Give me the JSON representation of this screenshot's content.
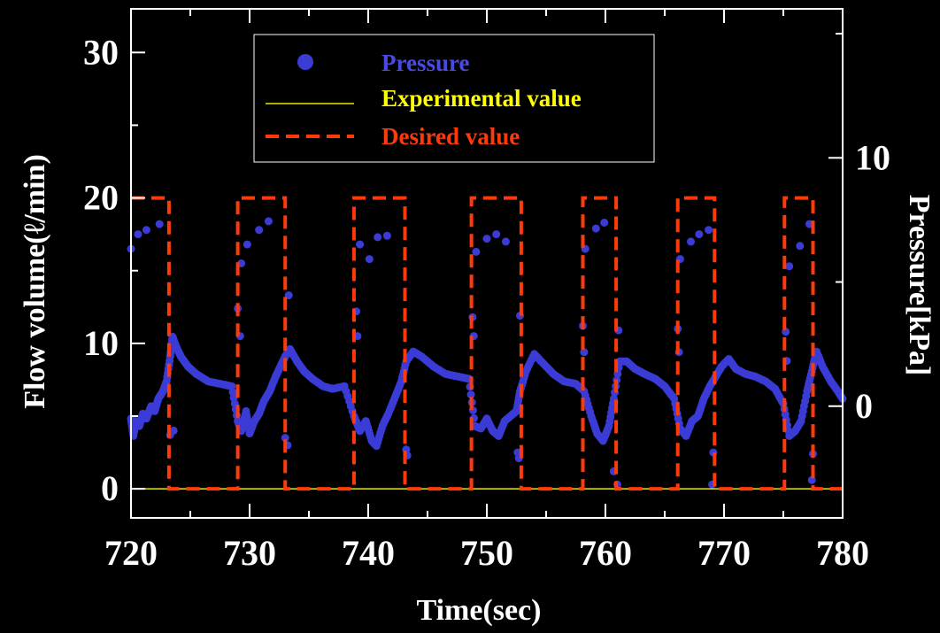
{
  "chart_data": {
    "type": "line",
    "xlabel": "Time(sec)",
    "ylabel_left": "Flow volume(ℓ/min)",
    "ylabel_right": "Pressure[kPa]",
    "xlim": [
      720,
      780
    ],
    "ylim_left": [
      -2,
      33
    ],
    "ylim_right": [
      -4.5,
      16
    ],
    "x_ticks": [
      720,
      730,
      740,
      750,
      760,
      770,
      780
    ],
    "y_ticks_left": [
      0,
      10,
      20,
      30
    ],
    "y_ticks_right": [
      0,
      10
    ],
    "background": "#000000",
    "axis_color": "#ffffff",
    "legend_position": "top-center",
    "series": [
      {
        "name": "Pressure",
        "style": "dots",
        "axis": "right",
        "color": "#3b3bd6",
        "x": [
          720,
          720.2,
          720.4,
          720.7,
          721,
          721.3,
          721.7,
          722,
          722.3,
          722.7,
          723,
          723.3,
          723.5,
          723.8,
          724.2,
          724.8,
          725.5,
          726.5,
          727.5,
          728.5,
          729,
          729.3,
          729.7,
          730,
          730.4,
          730.8,
          731.2,
          731.7,
          732.2,
          732.6,
          733,
          733.4,
          734,
          734.6,
          735.3,
          736.2,
          737,
          738,
          738.8,
          739.3,
          739.8,
          740.3,
          740.7,
          741.2,
          741.7,
          742.3,
          742.8,
          743.2,
          743.8,
          744.5,
          745.5,
          746.5,
          747.5,
          748.5,
          749,
          749.5,
          750,
          750.5,
          751,
          751.5,
          752,
          752.5,
          752.8,
          753.3,
          754,
          754.8,
          755.6,
          756.5,
          757.5,
          758.2,
          758.8,
          759.3,
          759.8,
          760.3,
          760.7,
          761.2,
          761.8,
          762.5,
          763.3,
          764.2,
          765,
          765.8,
          766.3,
          766.8,
          767.3,
          767.8,
          768.3,
          768.8,
          769.3,
          769.8,
          770.4,
          771,
          771.8,
          772.6,
          773.5,
          774.3,
          775,
          775.5,
          776,
          776.5,
          777,
          777.4,
          777.8,
          778.3,
          779,
          779.6,
          780
        ],
        "y": [
          -0.5,
          -1.2,
          -0.6,
          -0.8,
          -0.3,
          -0.5,
          0,
          -0.2,
          0.3,
          0.6,
          1,
          2,
          2.8,
          2.4,
          2,
          1.6,
          1.3,
          1,
          0.9,
          0.8,
          -0.6,
          -1,
          -0.2,
          -1.1,
          -0.6,
          -0.3,
          0.2,
          0.6,
          1.2,
          1.6,
          2,
          2.3,
          1.8,
          1.4,
          1.1,
          0.8,
          0.7,
          0.8,
          -0.4,
          -1,
          -0.6,
          -1.4,
          -1.6,
          -0.8,
          -0.3,
          0.4,
          1,
          1.8,
          2.2,
          2,
          1.6,
          1.3,
          1.2,
          1.1,
          -0.8,
          -0.9,
          -0.5,
          -1,
          -1.2,
          -0.6,
          -0.4,
          -0.2,
          0.6,
          1.4,
          2.1,
          1.7,
          1.3,
          1,
          0.9,
          0.6,
          -0.4,
          -1.1,
          -1.4,
          -0.8,
          0.3,
          1.8,
          1.8,
          1.5,
          1.3,
          1.1,
          0.8,
          0.3,
          -0.9,
          -1.2,
          -0.6,
          -0.4,
          0.3,
          0.8,
          1.2,
          1.6,
          1.9,
          1.5,
          1.3,
          1.2,
          1,
          0.7,
          0.1,
          -1.2,
          -1,
          -0.6,
          0.6,
          1.4,
          2.2,
          1.6,
          1,
          0.6,
          0.3
        ]
      },
      {
        "name": "Pressure",
        "style": "dots",
        "axis": "left",
        "color": "#3b3bd6",
        "x": [
          720,
          720.6,
          721.3,
          722.4,
          723.6,
          723.3,
          729,
          729.2,
          729.3,
          729.8,
          730.8,
          731.6,
          733,
          733.2,
          733.3,
          739,
          739.1,
          739.3,
          740.1,
          740.8,
          741.6,
          743.2,
          743.3,
          748.8,
          748.9,
          749.1,
          750,
          750.8,
          751.6,
          752.6,
          752.7,
          752.8,
          758.1,
          758.2,
          758.3,
          759.2,
          759.9,
          760.7,
          761,
          761.1,
          766.1,
          766.2,
          766.3,
          767.2,
          767.9,
          768.7,
          769,
          769.1,
          775.2,
          775.3,
          775.5,
          776.4,
          777.2,
          777.4,
          777.5
        ],
        "y": [
          16.5,
          17.5,
          17.8,
          18.2,
          4,
          3.7,
          12.4,
          10.5,
          15.5,
          16.8,
          17.8,
          18.4,
          3.5,
          3,
          13.3,
          12.2,
          10.5,
          16.8,
          15.8,
          17.3,
          17.4,
          2.7,
          2.3,
          11.8,
          10.5,
          16.3,
          17.2,
          17.5,
          17,
          2.5,
          2.1,
          11.9,
          11.2,
          9.4,
          16.5,
          17.9,
          18.3,
          1.2,
          0.3,
          10.9,
          11,
          9.4,
          15.8,
          17,
          17.5,
          17.8,
          0.3,
          2.5,
          10.8,
          8.8,
          15.3,
          16.7,
          18.2,
          0.6,
          2.4
        ]
      },
      {
        "name": "Experimental value",
        "style": "line",
        "axis": "left",
        "color": "#e8e800",
        "x": [
          720,
          780
        ],
        "y": [
          0,
          0
        ]
      },
      {
        "name": "Desired value",
        "style": "dashed",
        "axis": "left",
        "color": "#ff3a0a",
        "x": [
          720,
          720.2,
          723.2,
          723.2,
          729,
          729,
          733,
          733,
          738.8,
          738.8,
          743.1,
          743.1,
          748.7,
          748.7,
          752.9,
          752.9,
          758.1,
          758.1,
          760.9,
          760.9,
          766.1,
          766.1,
          769.2,
          769.2,
          775.1,
          775.1,
          777.5,
          777.5,
          780
        ],
        "y": [
          20,
          20,
          20,
          0,
          0,
          20,
          20,
          0,
          0,
          20,
          20,
          0,
          0,
          20,
          20,
          0,
          0,
          20,
          20,
          0,
          0,
          20,
          20,
          0,
          0,
          20,
          20,
          0,
          0
        ]
      }
    ]
  }
}
